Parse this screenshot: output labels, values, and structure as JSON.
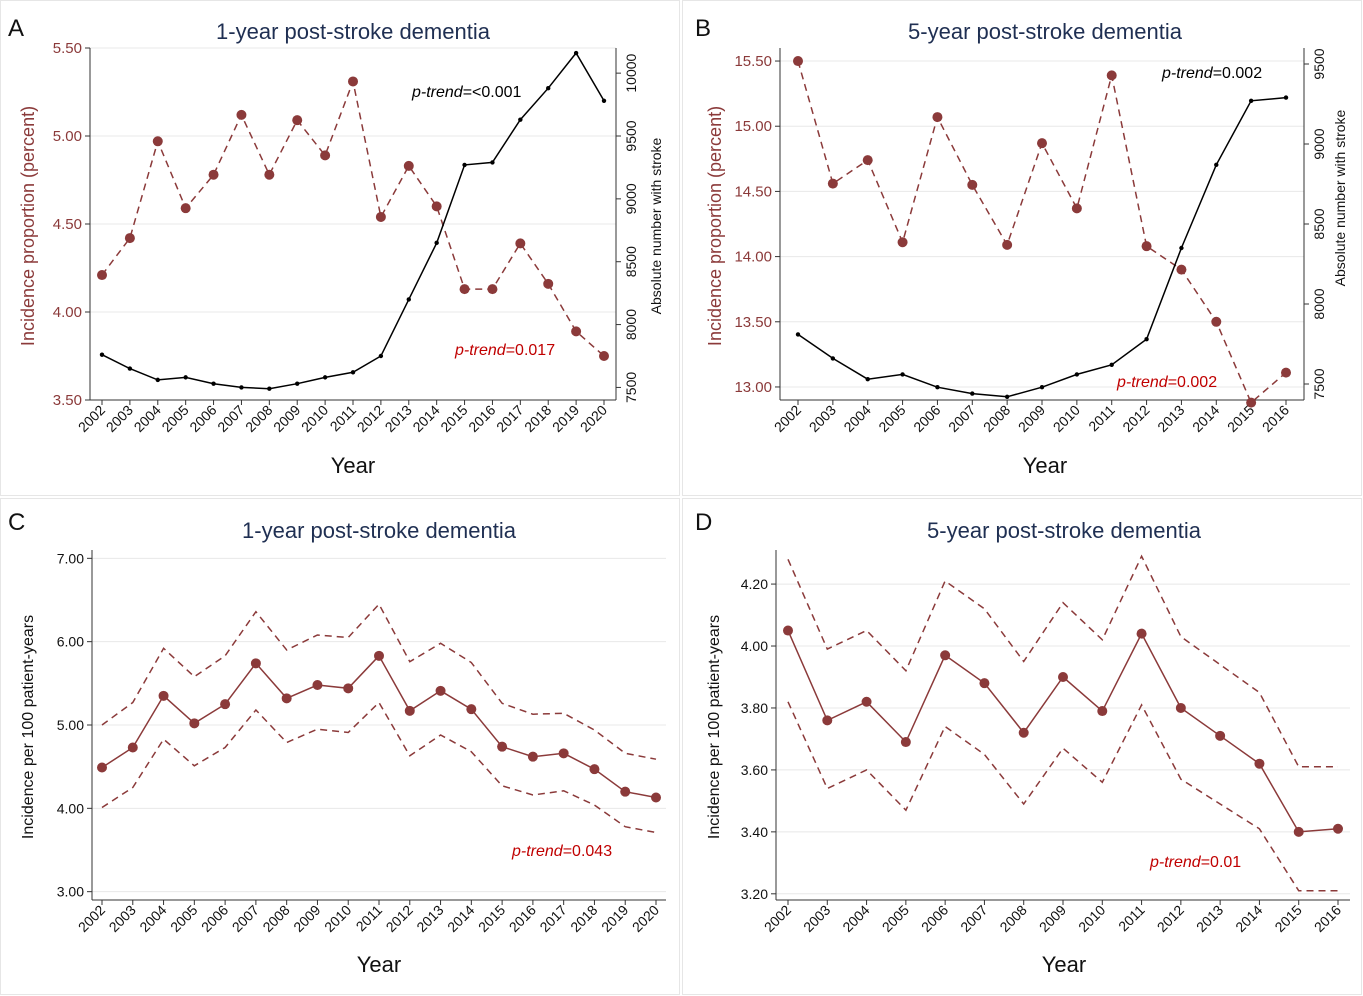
{
  "colors": {
    "primary": "#8b3a3a",
    "secondary": "#000000",
    "title": "#1f2f52",
    "annotation_red": "#c00000"
  },
  "chart_data": [
    {
      "panel": "A",
      "type": "line",
      "title": "1-year post-stroke dementia",
      "xlabel": "Year",
      "ylabel": "Incidence proportion (percent)",
      "y2label": "Absolute number with stroke",
      "x": [
        2002,
        2003,
        2004,
        2005,
        2006,
        2007,
        2008,
        2009,
        2010,
        2011,
        2012,
        2013,
        2014,
        2015,
        2016,
        2017,
        2018,
        2019,
        2020
      ],
      "ylim": [
        3.5,
        5.5
      ],
      "yticks": [
        3.5,
        4.0,
        4.5,
        5.0,
        5.5
      ],
      "ytick_labels": [
        "3.50",
        "4.00",
        "4.50",
        "5.00",
        "5.50"
      ],
      "y2lim": [
        7400,
        10200
      ],
      "y2ticks": [
        7500,
        8000,
        8500,
        9000,
        9500,
        10000
      ],
      "y2tick_labels": [
        "7500",
        "8000",
        "8500",
        "9000",
        "9500",
        "10000"
      ],
      "series": [
        {
          "name": "Incidence proportion",
          "axis": "left",
          "style": "dashed-dots",
          "color": "#8b3a3a",
          "values": [
            4.21,
            4.42,
            4.97,
            4.59,
            4.78,
            5.12,
            4.78,
            5.09,
            4.89,
            5.31,
            4.54,
            4.83,
            4.6,
            4.13,
            4.13,
            4.39,
            4.16,
            3.89,
            3.75
          ]
        },
        {
          "name": "Absolute number with stroke",
          "axis": "right",
          "style": "solid-small",
          "color": "#000000",
          "values": [
            7760,
            7650,
            7560,
            7580,
            7530,
            7500,
            7490,
            7530,
            7580,
            7620,
            7750,
            8200,
            8650,
            9270,
            9290,
            9630,
            9880,
            10160,
            9780
          ]
        }
      ],
      "annotations": [
        {
          "key": "a1",
          "italic": "p-trend",
          "text": "=<0.001",
          "color": "#000000"
        },
        {
          "key": "a2",
          "italic": "p-trend",
          "text": "=0.017",
          "color": "#c00000"
        }
      ]
    },
    {
      "panel": "B",
      "type": "line",
      "title": "5-year post-stroke dementia",
      "xlabel": "Year",
      "ylabel": "Incidence proportion (percent)",
      "y2label": "Absolute number with stroke",
      "x": [
        2002,
        2003,
        2004,
        2005,
        2006,
        2007,
        2008,
        2009,
        2010,
        2011,
        2012,
        2013,
        2014,
        2015,
        2016
      ],
      "ylim": [
        12.9,
        15.6
      ],
      "yticks": [
        13.0,
        13.5,
        14.0,
        14.5,
        15.0,
        15.5
      ],
      "ytick_labels": [
        "13.00",
        "13.50",
        "14.00",
        "14.50",
        "15.00",
        "15.50"
      ],
      "y2lim": [
        7400,
        9600
      ],
      "y2ticks": [
        7500,
        8000,
        8500,
        9000,
        9500
      ],
      "y2tick_labels": [
        "7500",
        "8000",
        "8500",
        "9000",
        "9500"
      ],
      "series": [
        {
          "name": "Incidence proportion",
          "axis": "left",
          "style": "dashed-dots",
          "color": "#8b3a3a",
          "values": [
            15.5,
            14.56,
            14.74,
            14.11,
            15.07,
            14.55,
            14.09,
            14.87,
            14.37,
            15.39,
            14.08,
            13.9,
            13.5,
            12.88,
            13.11
          ]
        },
        {
          "name": "Absolute number with stroke",
          "axis": "right",
          "style": "solid-small",
          "color": "#000000",
          "values": [
            7810,
            7660,
            7530,
            7560,
            7480,
            7440,
            7420,
            7480,
            7560,
            7620,
            7780,
            8350,
            8870,
            9270,
            9290
          ]
        }
      ],
      "annotations": [
        {
          "key": "b1",
          "italic": "p-trend",
          "text": "=0.002",
          "color": "#000000"
        },
        {
          "key": "b2",
          "italic": "p-trend",
          "text": "=0.002",
          "color": "#c00000"
        }
      ]
    },
    {
      "panel": "C",
      "type": "line",
      "title": "1-year post-stroke dementia",
      "xlabel": "Year",
      "ylabel": "Incidence per 100 patient-years",
      "x": [
        2002,
        2003,
        2004,
        2005,
        2006,
        2007,
        2008,
        2009,
        2010,
        2011,
        2012,
        2013,
        2014,
        2015,
        2016,
        2017,
        2018,
        2019,
        2020
      ],
      "ylim": [
        2.9,
        7.1
      ],
      "yticks": [
        3.0,
        4.0,
        5.0,
        6.0,
        7.0
      ],
      "ytick_labels": [
        "3.00",
        "4.00",
        "5.00",
        "6.00",
        "7.00"
      ],
      "series": [
        {
          "name": "Incidence",
          "style": "solid-dots",
          "color": "#8b3a3a",
          "values": [
            4.49,
            4.73,
            5.35,
            5.02,
            5.25,
            5.74,
            5.32,
            5.48,
            5.44,
            5.83,
            5.17,
            5.41,
            5.19,
            4.74,
            4.62,
            4.66,
            4.47,
            4.2,
            4.13
          ]
        },
        {
          "name": "Upper 95% CI",
          "style": "dashed",
          "color": "#8b3a3a",
          "values": [
            5.0,
            5.27,
            5.92,
            5.58,
            5.83,
            6.36,
            5.9,
            6.08,
            6.05,
            6.45,
            5.76,
            5.98,
            5.75,
            5.26,
            5.13,
            5.14,
            4.94,
            4.66,
            4.59
          ]
        },
        {
          "name": "Lower 95% CI",
          "style": "dashed",
          "color": "#8b3a3a",
          "values": [
            4.01,
            4.25,
            4.83,
            4.51,
            4.73,
            5.18,
            4.79,
            4.95,
            4.91,
            5.27,
            4.63,
            4.88,
            4.68,
            4.27,
            4.16,
            4.21,
            4.04,
            3.78,
            3.71
          ]
        }
      ],
      "annotations": [
        {
          "key": "c1",
          "italic": "p-trend",
          "text": "=0.043",
          "color": "#c00000"
        }
      ]
    },
    {
      "panel": "D",
      "type": "line",
      "title": "5-year post-stroke dementia",
      "xlabel": "Year",
      "ylabel": "Incidence per 100 patient-years",
      "x": [
        2002,
        2003,
        2004,
        2005,
        2006,
        2007,
        2008,
        2009,
        2010,
        2011,
        2012,
        2013,
        2014,
        2015,
        2016
      ],
      "ylim": [
        3.18,
        4.31
      ],
      "yticks": [
        3.2,
        3.4,
        3.6,
        3.8,
        4.0,
        4.2
      ],
      "ytick_labels": [
        "3.20",
        "3.40",
        "3.60",
        "3.80",
        "4.00",
        "4.20"
      ],
      "series": [
        {
          "name": "Incidence",
          "style": "solid-dots",
          "color": "#8b3a3a",
          "values": [
            4.05,
            3.76,
            3.82,
            3.69,
            3.97,
            3.88,
            3.72,
            3.9,
            3.79,
            4.04,
            3.8,
            3.71,
            3.62,
            3.4,
            3.41
          ]
        },
        {
          "name": "Upper 95% CI",
          "style": "dashed",
          "color": "#8b3a3a",
          "values": [
            4.28,
            3.99,
            4.05,
            3.92,
            4.21,
            4.12,
            3.95,
            4.14,
            4.02,
            4.29,
            4.03,
            3.94,
            3.85,
            3.61,
            3.61
          ]
        },
        {
          "name": "Lower 95% CI",
          "style": "dashed",
          "color": "#8b3a3a",
          "values": [
            3.82,
            3.54,
            3.6,
            3.47,
            3.74,
            3.65,
            3.49,
            3.67,
            3.56,
            3.81,
            3.57,
            3.49,
            3.41,
            3.21,
            3.21
          ]
        }
      ],
      "annotations": [
        {
          "key": "d1",
          "italic": "p-trend",
          "text": "=0.01",
          "color": "#c00000"
        }
      ]
    }
  ]
}
